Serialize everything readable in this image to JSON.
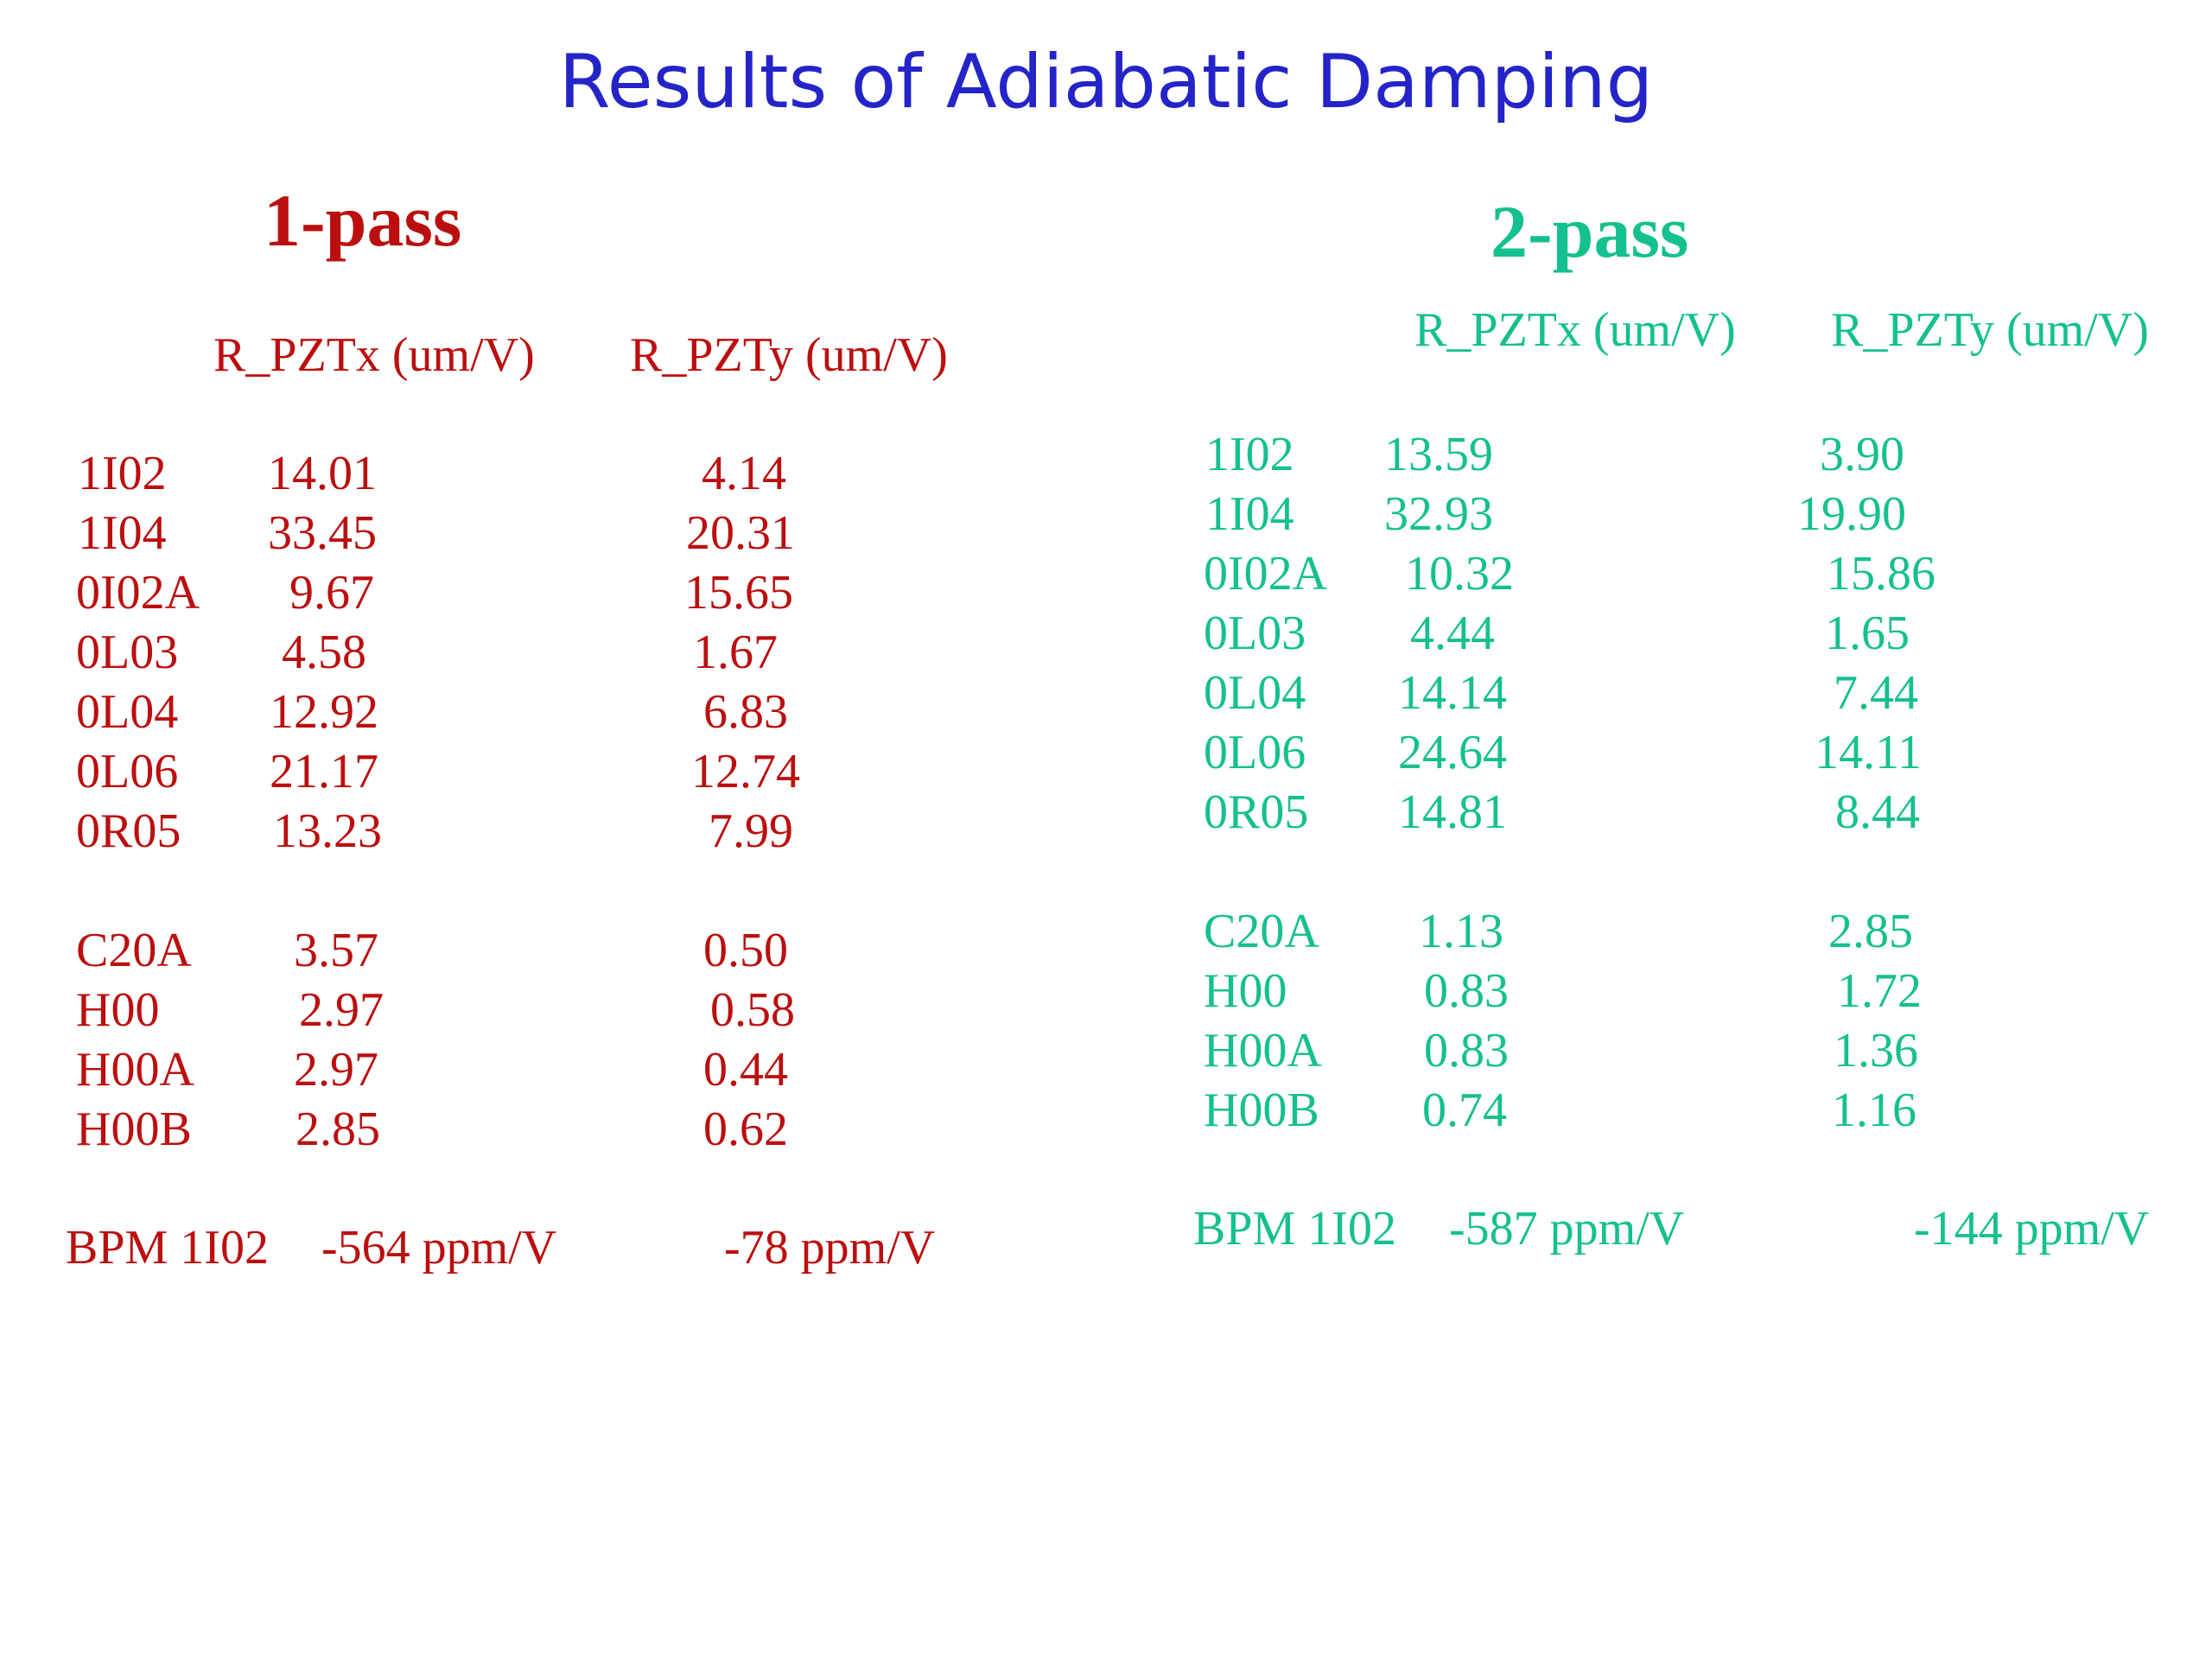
{
  "title": "Results of Adiabatic Damping",
  "colors": {
    "title": "#2424c8",
    "one_pass": "#bb0f0f",
    "two_pass": "#14c08e",
    "background": "#ffffff"
  },
  "one_pass": {
    "heading": "1-pass",
    "col_x": "R_PZTx (um/V)",
    "col_y": "R_PZTy (um/V)",
    "group1": [
      {
        "name": "1I02",
        "x": "14.01",
        "y": "4.14"
      },
      {
        "name": "1I04",
        "x": "33.45",
        "y": "20.31"
      },
      {
        "name": "0I02A",
        "x": "9.67",
        "y": "15.65"
      },
      {
        "name": "0L03",
        "x": "4.58",
        "y": "1.67"
      },
      {
        "name": "0L04",
        "x": "12.92",
        "y": "6.83"
      },
      {
        "name": "0L06",
        "x": "21.17",
        "y": "12.74"
      },
      {
        "name": "0R05",
        "x": "13.23",
        "y": "7.99"
      }
    ],
    "group2": [
      {
        "name": "C20A",
        "x": "3.57",
        "y": "0.50"
      },
      {
        "name": "H00",
        "x": "2.97",
        "y": "0.58"
      },
      {
        "name": "H00A",
        "x": "2.97",
        "y": "0.44"
      },
      {
        "name": "H00B",
        "x": "2.85",
        "y": "0.62"
      }
    ],
    "bpm": {
      "name": "BPM 1I02",
      "x": "-564 ppm/V",
      "y": "-78 ppm/V"
    }
  },
  "two_pass": {
    "heading": "2-pass",
    "col_x": "R_PZTx (um/V)",
    "col_y": "R_PZTy (um/V)",
    "group1": [
      {
        "name": "1I02",
        "x": "13.59",
        "y": "3.90"
      },
      {
        "name": "1I04",
        "x": "32.93",
        "y": "19.90"
      },
      {
        "name": "0I02A",
        "x": "10.32",
        "y": "15.86"
      },
      {
        "name": "0L03",
        "x": "4.44",
        "y": "1.65"
      },
      {
        "name": "0L04",
        "x": "14.14",
        "y": "7.44"
      },
      {
        "name": "0L06",
        "x": "24.64",
        "y": "14.11"
      },
      {
        "name": "0R05",
        "x": "14.81",
        "y": "8.44"
      }
    ],
    "group2": [
      {
        "name": "C20A",
        "x": "1.13",
        "y": "2.85"
      },
      {
        "name": "H00",
        "x": "0.83",
        "y": "1.72"
      },
      {
        "name": "H00A",
        "x": "0.83",
        "y": "1.36"
      },
      {
        "name": "H00B",
        "x": "0.74",
        "y": "1.16"
      }
    ],
    "bpm": {
      "name": "BPM 1I02",
      "x": "-587 ppm/V",
      "y": "-144 ppm/V"
    }
  }
}
